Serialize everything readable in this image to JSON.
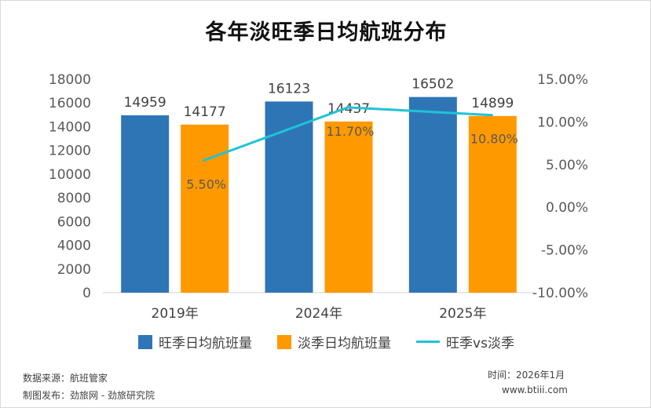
{
  "chart_data": {
    "type": "bar",
    "title": "各年淡旺季日均航班分布",
    "categories": [
      "2019年",
      "2024年",
      "2025年"
    ],
    "series": [
      {
        "name": "旺季日均航班量",
        "kind": "bar",
        "axis": "left",
        "color": "#2e75b6",
        "values": [
          14959,
          16123,
          16502
        ]
      },
      {
        "name": "淡季日均航班量",
        "kind": "bar",
        "axis": "left",
        "color": "#ff9900",
        "values": [
          14177,
          14437,
          14899
        ]
      },
      {
        "name": "旺季vs淡季",
        "kind": "line",
        "axis": "right",
        "color": "#1fc3d6",
        "values": [
          5.5,
          11.7,
          10.8
        ],
        "labels": [
          "5.50%",
          "11.70%",
          "10.80%"
        ]
      }
    ],
    "y_left": {
      "ylim": [
        0,
        18000
      ],
      "ticks": [
        "18000",
        "16000",
        "14000",
        "12000",
        "10000",
        "8000",
        "6000",
        "4000",
        "2000",
        "0"
      ]
    },
    "y_right": {
      "ylim": [
        -10,
        15
      ],
      "ticks": [
        "15.00%",
        "10.00%",
        "5.00%",
        "0.00%",
        "-5.00%",
        "-10.00%"
      ]
    },
    "grid": false,
    "legend": "bottom"
  },
  "footer": {
    "source": "数据来源：航班管家",
    "publisher": "制图发布：劲旅网 - 劲旅研究院",
    "time": "时间：2026年1月",
    "site": "www.btiii.com"
  }
}
